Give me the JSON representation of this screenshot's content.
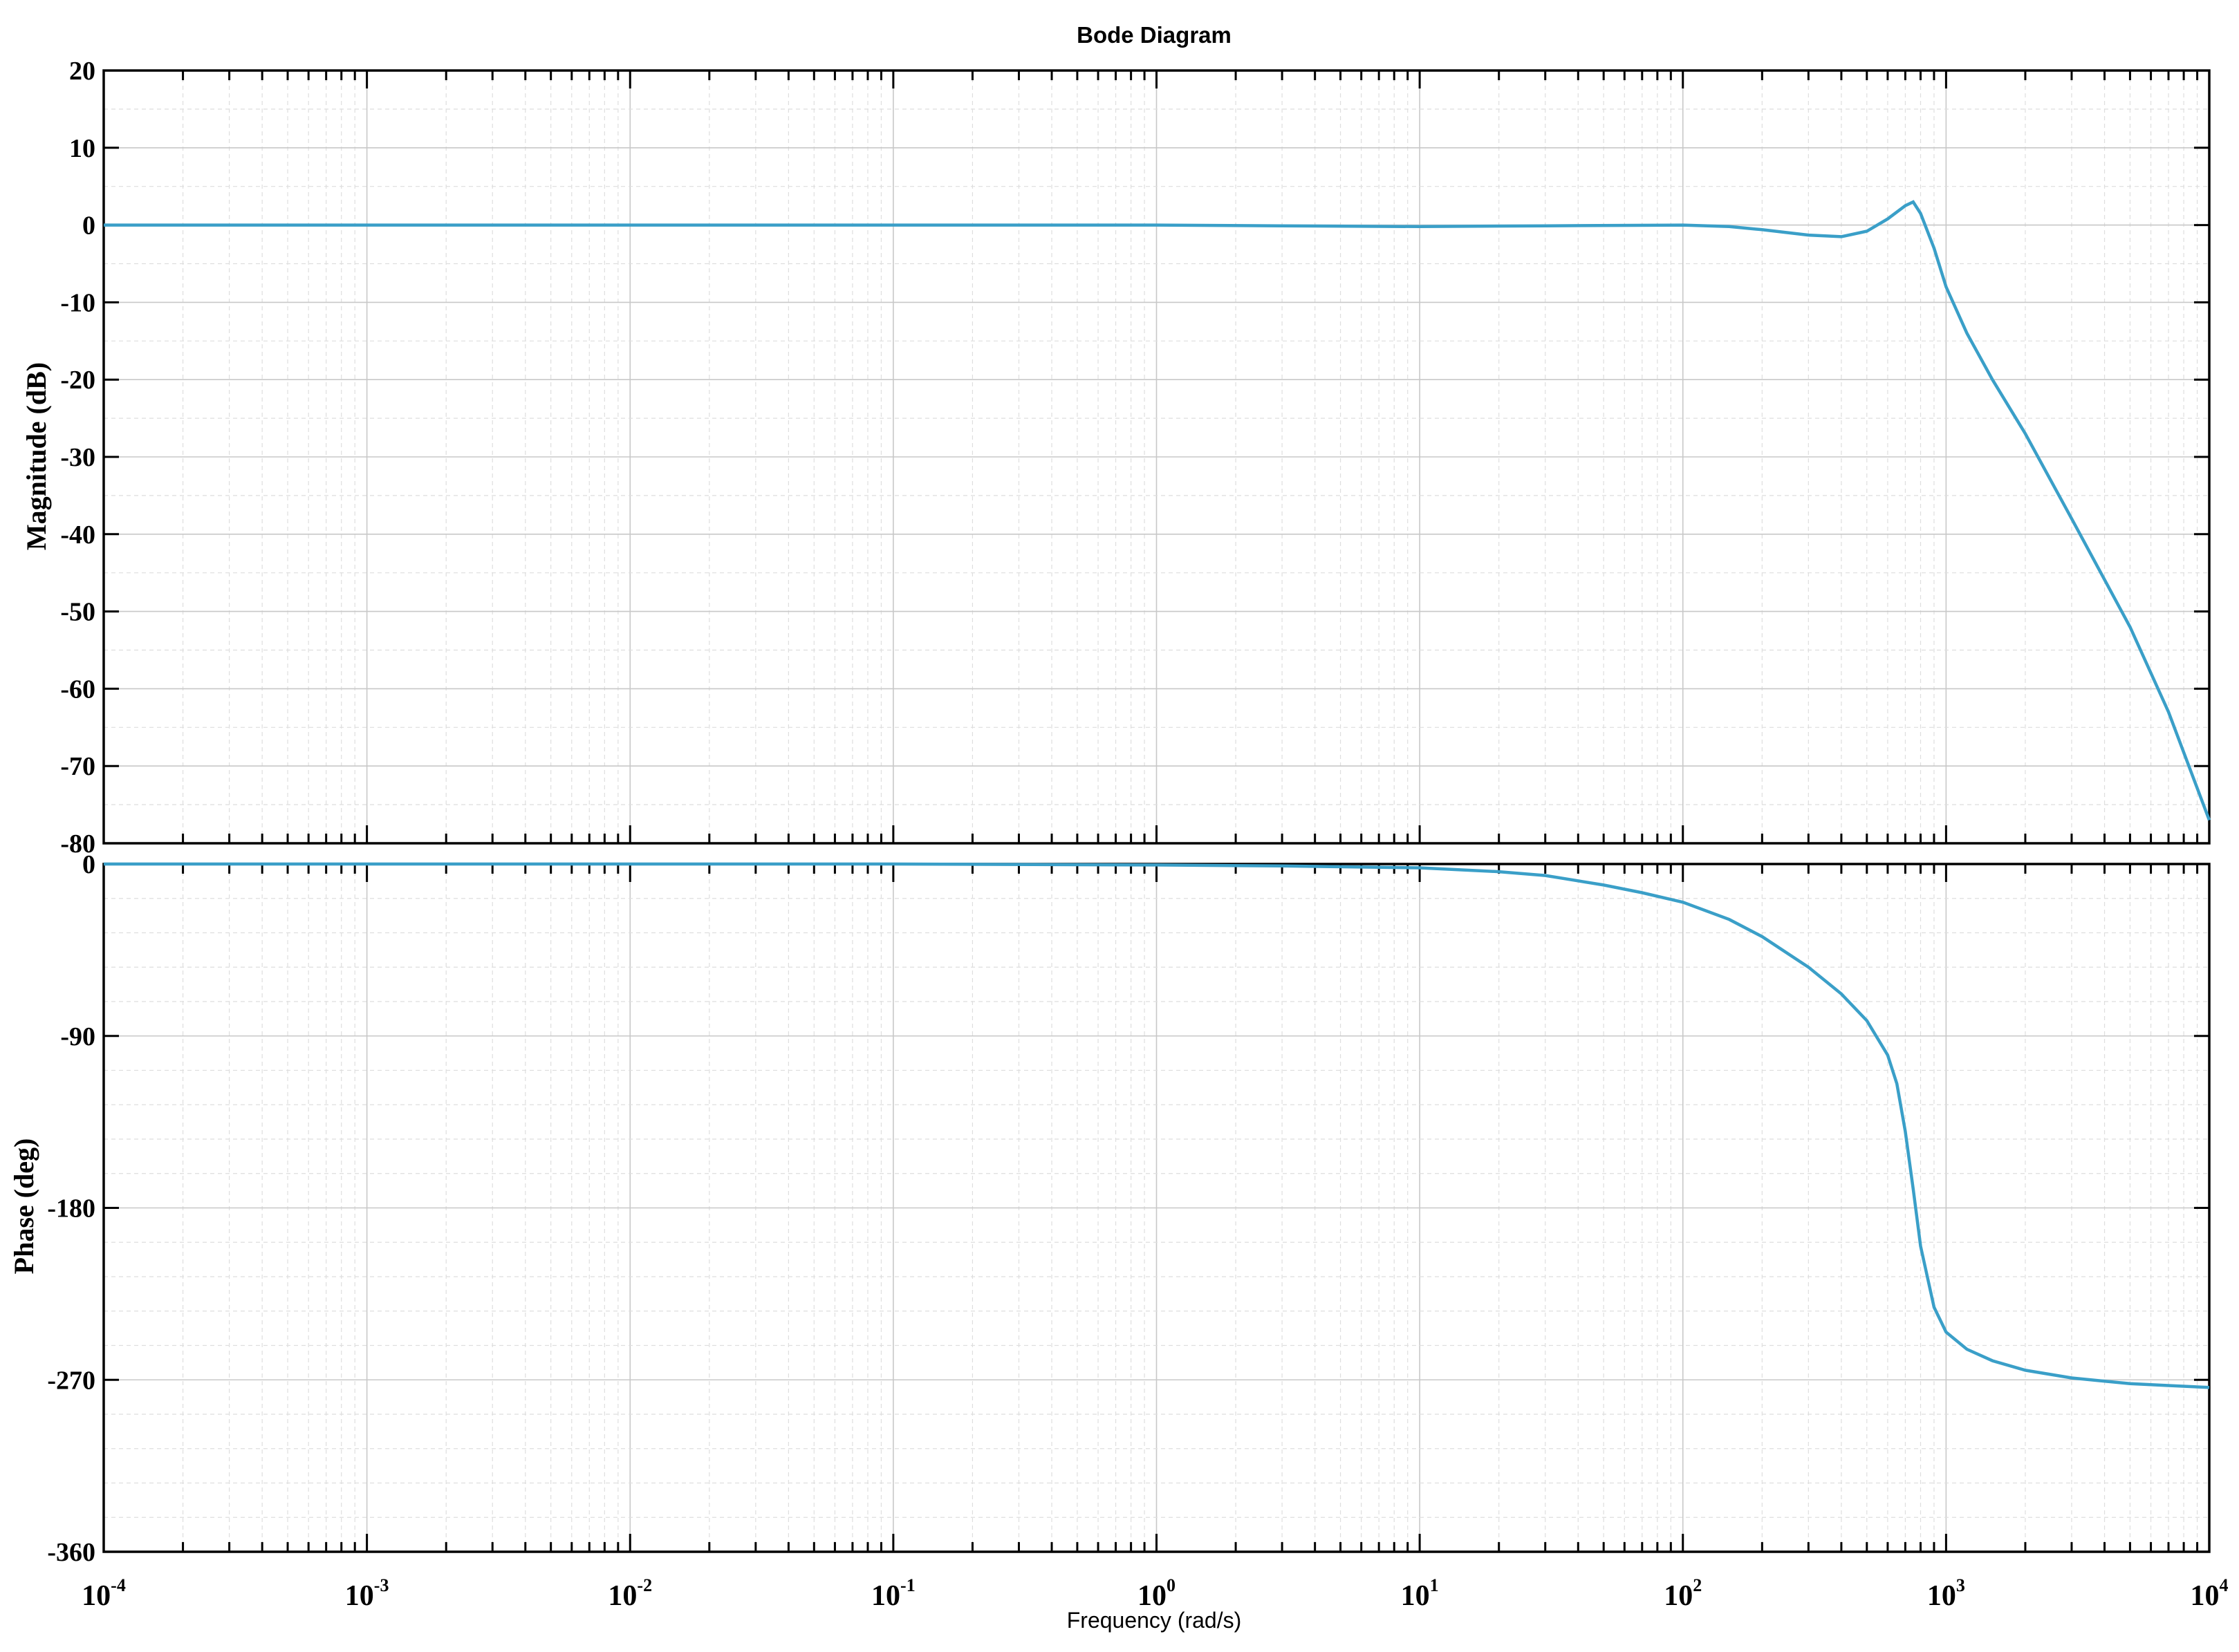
{
  "chart_data": [
    {
      "type": "line",
      "panel": "magnitude",
      "title": "Bode Diagram",
      "ylabel": "Magnitude (dB)",
      "xscale": "log",
      "xlim": [
        0.0001,
        10000
      ],
      "ylim": [
        -80,
        20
      ],
      "yticks": [
        20,
        10,
        0,
        -10,
        -20,
        -30,
        -40,
        -50,
        -60,
        -70,
        -80
      ],
      "grid": true,
      "series": [
        {
          "color": "#3a9fc8",
          "x": [
            0.0001,
            0.001,
            0.01,
            0.1,
            1,
            3,
            10,
            30,
            100,
            150,
            200,
            300,
            400,
            500,
            600,
            700,
            750,
            800,
            900,
            1000,
            1200,
            1500,
            2000,
            3000,
            5000,
            7000,
            10000
          ],
          "y": [
            0,
            0,
            0,
            0,
            0,
            -0.1,
            -0.2,
            -0.1,
            0,
            -0.2,
            -0.6,
            -1.3,
            -1.5,
            -0.8,
            0.8,
            2.5,
            3,
            1.5,
            -3,
            -8,
            -14,
            -20,
            -27,
            -38,
            -52,
            -63,
            -77
          ]
        }
      ]
    },
    {
      "type": "line",
      "panel": "phase",
      "ylabel": "Phase (deg)",
      "xlabel": "Frequency  (rad/s)",
      "xscale": "log",
      "xlim": [
        0.0001,
        10000
      ],
      "ylim": [
        -360,
        0
      ],
      "yticks": [
        0,
        -90,
        -180,
        -270,
        -360
      ],
      "xticks": [
        {
          "value": 0.0001,
          "base": "10",
          "exp": "-4"
        },
        {
          "value": 0.001,
          "base": "10",
          "exp": "-3"
        },
        {
          "value": 0.01,
          "base": "10",
          "exp": "-2"
        },
        {
          "value": 0.1,
          "base": "10",
          "exp": "-1"
        },
        {
          "value": 1,
          "base": "10",
          "exp": "0"
        },
        {
          "value": 10,
          "base": "10",
          "exp": "1"
        },
        {
          "value": 100,
          "base": "10",
          "exp": "2"
        },
        {
          "value": 1000,
          "base": "10",
          "exp": "3"
        },
        {
          "value": 10000,
          "base": "10",
          "exp": "4"
        }
      ],
      "grid": true,
      "series": [
        {
          "color": "#3a9fc8",
          "x": [
            0.0001,
            0.001,
            0.01,
            0.1,
            1,
            3,
            10,
            20,
            30,
            50,
            70,
            100,
            150,
            200,
            300,
            400,
            500,
            600,
            650,
            700,
            750,
            800,
            900,
            1000,
            1200,
            1500,
            2000,
            3000,
            5000,
            7000,
            10000
          ],
          "y": [
            0,
            0,
            0,
            0,
            -0.5,
            -1,
            -2,
            -4,
            -6,
            -11,
            -15,
            -20,
            -29,
            -38,
            -54,
            -68,
            -82,
            -100,
            -115,
            -140,
            -170,
            -200,
            -232,
            -245,
            -254,
            -260,
            -265,
            -269,
            -272,
            -273,
            -274
          ]
        }
      ]
    }
  ]
}
